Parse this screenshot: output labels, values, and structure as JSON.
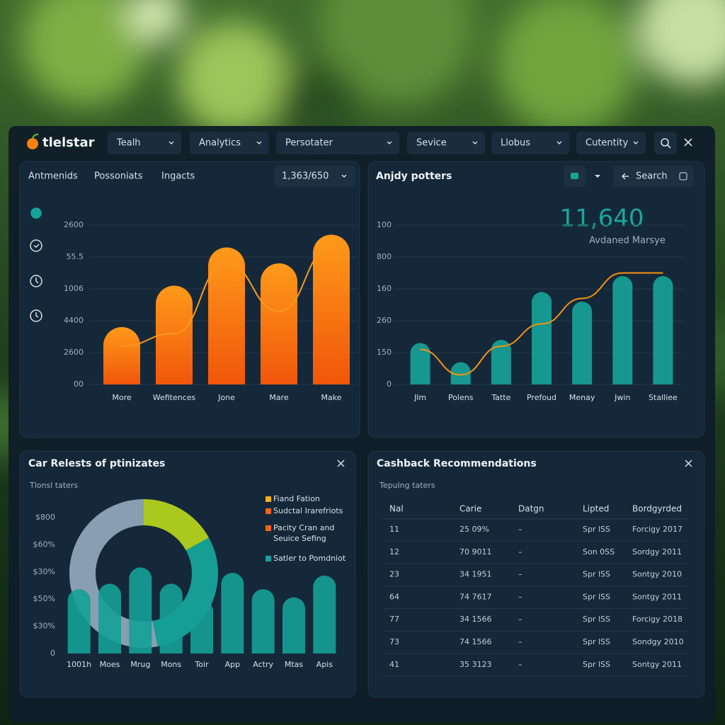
{
  "header": {
    "logo": "tlelstar",
    "menus": [
      "Tealh",
      "Analytics",
      "Persotater",
      "Sevice",
      "Llobus",
      "Cutentity"
    ]
  },
  "panels": {
    "overview": {
      "tabs": [
        "Antmenids",
        "Possoniats",
        "Ingacts"
      ],
      "selector": "1,363/650"
    },
    "patterns": {
      "title": "Anjdy potters",
      "search": "Search",
      "kpi": "11,640",
      "kpi_label": "Avdaned Marsye"
    },
    "results": {
      "title": "Car Relests of ptinizates",
      "subtitle": "Tlonsl taters"
    },
    "cashback": {
      "title": "Cashback Recommendations",
      "subtitle": "Tepulng taters"
    }
  },
  "chart_data": [
    {
      "type": "bar",
      "categories": [
        "More",
        "Wefitences",
        "Jone",
        "Mare",
        "Make"
      ],
      "ylim": [
        0,
        5
      ],
      "yticks": [
        {
          "value": 0,
          "label": "00"
        },
        {
          "value": 1,
          "label": "2600"
        },
        {
          "value": 2,
          "label": "4400"
        },
        {
          "value": 3,
          "label": "1006"
        },
        {
          "value": 4,
          "label": "55.5"
        },
        {
          "value": 5,
          "label": "2600"
        }
      ],
      "grid": true,
      "series": [
        {
          "type": "bar",
          "color": "#f7780f",
          "values": [
            1.8,
            3.1,
            4.3,
            3.8,
            4.7
          ]
        },
        {
          "type": "line",
          "color": "#f79a1a",
          "values": [
            1.2,
            1.6,
            3.8,
            2.3,
            4.3
          ]
        }
      ]
    },
    {
      "type": "bar",
      "categories": [
        "Jlm",
        "Polens",
        "Tatte",
        "Prefoud",
        "Menay",
        "Jwin",
        "Stalliee"
      ],
      "ylim": [
        0,
        5
      ],
      "yticks": [
        0,
        {
          "value": 1,
          "label": "150"
        },
        {
          "value": 2,
          "label": "260"
        },
        {
          "value": 3,
          "label": "160"
        },
        {
          "value": 4,
          "label": "800"
        },
        {
          "value": 5,
          "label": "100"
        }
      ],
      "grid": true,
      "series": [
        {
          "type": "bar",
          "color": "#16978f",
          "values": [
            1.3,
            0.7,
            1.4,
            2.9,
            2.6,
            3.4,
            3.4
          ]
        },
        {
          "type": "line",
          "color": "#f7920f",
          "values": [
            1.1,
            0.3,
            1.2,
            1.9,
            2.7,
            3.5,
            3.5
          ]
        }
      ]
    },
    {
      "type": "bar",
      "categories": [
        "1001h",
        "Moes",
        "Mrug",
        "Mons",
        "Toir",
        "App",
        "Actry",
        "Mtas",
        "Apis"
      ],
      "ylim": [
        0,
        5
      ],
      "yticks": [
        0,
        {
          "value": 1,
          "label": "$30%"
        },
        {
          "value": 2,
          "label": "$50%"
        },
        {
          "value": 3,
          "label": "$30%"
        },
        {
          "value": 4,
          "label": "$60%"
        },
        {
          "value": 5,
          "label": "$800"
        }
      ],
      "grid": false,
      "series": [
        {
          "type": "bar",
          "color": "#14a096",
          "values": [
            2.0,
            2.2,
            2.8,
            2.2,
            1.6,
            2.6,
            2.0,
            1.7,
            2.5
          ]
        }
      ],
      "donut": {
        "values": [
          17,
          30,
          53
        ],
        "colors": [
          "#b3d11e",
          "#16a399",
          "#8ea4b8"
        ]
      },
      "legend": [
        {
          "name": "Fiand Fation",
          "color": "#f2b01a"
        },
        {
          "name": "Sudctal Irarefriots",
          "color": "#f2641a"
        },
        {
          "name": "Pacity Cran and Seuice Sefing",
          "color": "#f2641a"
        },
        {
          "name": "Satler to Pomdniot",
          "color": "#1aa39a"
        }
      ]
    }
  ],
  "table": {
    "columns": [
      "Nal",
      "Carie",
      "Datgn",
      "Lipted",
      "Bordgyrded"
    ],
    "rows": [
      [
        "11",
        "25 09%",
        "–",
        "Spr lSS",
        "Forcigy 2017"
      ],
      [
        "12",
        "70 9011",
        "–",
        "Son 0SS",
        "Sordgy 2011"
      ],
      [
        "23",
        "34 1951",
        "–",
        "Spr lSS",
        "Sontgy 2010"
      ],
      [
        "64",
        "74 7617",
        "–",
        "Spr lSS",
        "Sontgy 2011"
      ],
      [
        "77",
        "34 1566",
        "–",
        "Spr lSS",
        "Forcigy 2018"
      ],
      [
        "73",
        "74 1566",
        "–",
        "Spr lSS",
        "Sondgy 2010"
      ],
      [
        "41",
        "35 3123",
        "–",
        "Spr lSS",
        "Sontgy 2011"
      ]
    ]
  }
}
